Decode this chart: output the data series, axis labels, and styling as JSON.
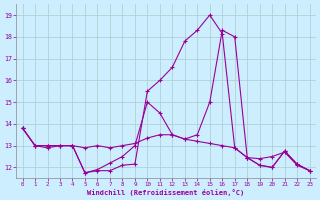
{
  "title": "",
  "xlabel": "Windchill (Refroidissement éolien,°C)",
  "background_color": "#cceeff",
  "line_color": "#990099",
  "grid_color": "#aacccc",
  "ylim": [
    11.5,
    19.5
  ],
  "xlim": [
    -0.5,
    23.5
  ],
  "yticks": [
    12,
    13,
    14,
    15,
    16,
    17,
    18,
    19
  ],
  "xticks": [
    0,
    1,
    2,
    3,
    4,
    5,
    6,
    7,
    8,
    9,
    10,
    11,
    12,
    13,
    14,
    15,
    16,
    17,
    18,
    19,
    20,
    21,
    22,
    23
  ],
  "series": [
    [
      13.8,
      13.0,
      13.0,
      13.0,
      13.0,
      12.9,
      13.0,
      12.9,
      13.0,
      13.1,
      13.35,
      13.5,
      13.5,
      13.3,
      13.2,
      13.1,
      13.0,
      12.9,
      12.45,
      12.1,
      12.0,
      12.75,
      12.15,
      11.85
    ],
    [
      13.8,
      13.0,
      13.0,
      13.0,
      13.0,
      11.75,
      11.9,
      12.2,
      12.5,
      13.0,
      15.0,
      14.5,
      13.5,
      13.3,
      13.5,
      15.0,
      18.3,
      18.0,
      12.45,
      12.4,
      12.5,
      12.7,
      12.1,
      11.85
    ],
    [
      13.8,
      13.0,
      12.9,
      13.0,
      13.0,
      11.75,
      11.85,
      11.85,
      12.1,
      12.15,
      15.5,
      16.0,
      16.6,
      17.8,
      18.3,
      19.0,
      18.15,
      12.9,
      12.45,
      12.1,
      12.0,
      12.75,
      12.15,
      11.85
    ]
  ]
}
